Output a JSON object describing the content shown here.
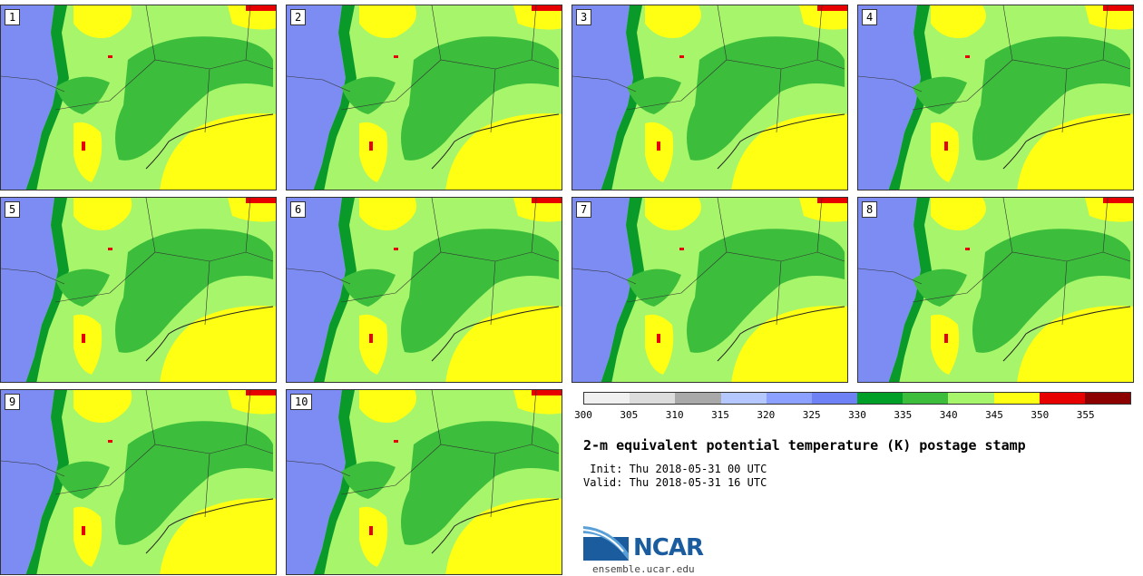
{
  "panels": [
    {
      "number": "1"
    },
    {
      "number": "2"
    },
    {
      "number": "3"
    },
    {
      "number": "4"
    },
    {
      "number": "5"
    },
    {
      "number": "6"
    },
    {
      "number": "7"
    },
    {
      "number": "8"
    },
    {
      "number": "9"
    },
    {
      "number": "10"
    }
  ],
  "colorbar": {
    "colors": [
      "#f0f0f0",
      "#dcdcdc",
      "#a9a9a9",
      "#b4c8ff",
      "#8ca0ff",
      "#6e82f5",
      "#00a028",
      "#3cbe3c",
      "#a6f56a",
      "#ffff14",
      "#e60000",
      "#8c0000"
    ],
    "ticks": [
      "300",
      "305",
      "310",
      "315",
      "320",
      "325",
      "330",
      "335",
      "340",
      "345",
      "350",
      "355"
    ]
  },
  "title": "2-m equivalent potential temperature (K) postage stamp",
  "init": " Init: Thu 2018-05-31 00 UTC",
  "valid": "Valid: Thu 2018-05-31 16 UTC",
  "logo": {
    "text": "NCAR",
    "url": "ensemble.ucar.edu"
  },
  "map_colors": {
    "blue": "#7c8cf2",
    "dark_green": "#0a9a2a",
    "green": "#3cbe3c",
    "light_green": "#a6f56a",
    "yellow": "#ffff14",
    "red": "#e60000"
  }
}
